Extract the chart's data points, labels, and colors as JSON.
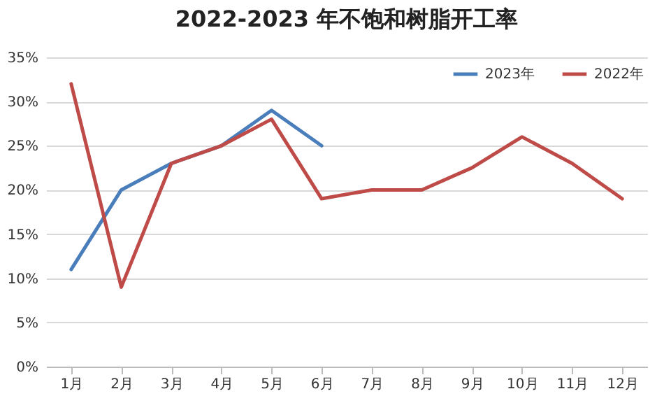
{
  "chart_data": {
    "type": "line",
    "title": "2022-2023 年不饱和树脂开工率",
    "categories": [
      "1月",
      "2月",
      "3月",
      "4月",
      "5月",
      "6月",
      "7月",
      "8月",
      "9月",
      "10月",
      "11月",
      "12月"
    ],
    "series": [
      {
        "name": "2023年",
        "color": "#4a7ebb",
        "values": [
          11,
          20,
          23,
          25,
          29,
          25,
          null,
          null,
          null,
          null,
          null,
          null
        ]
      },
      {
        "name": "2022年",
        "color": "#be4b48",
        "values": [
          32,
          9,
          23,
          25,
          28,
          19,
          20,
          20,
          22.5,
          26,
          23,
          19
        ]
      }
    ],
    "ylim": [
      0,
      35
    ],
    "yticks": [
      {
        "value": 0,
        "label": "0%"
      },
      {
        "value": 5,
        "label": "5%"
      },
      {
        "value": 10,
        "label": "10%"
      },
      {
        "value": 15,
        "label": "15%"
      },
      {
        "value": 20,
        "label": "20%"
      },
      {
        "value": 25,
        "label": "25%"
      },
      {
        "value": 30,
        "label": "30%"
      },
      {
        "value": 35,
        "label": "35%"
      }
    ],
    "grid": "y",
    "legend": "top right"
  }
}
